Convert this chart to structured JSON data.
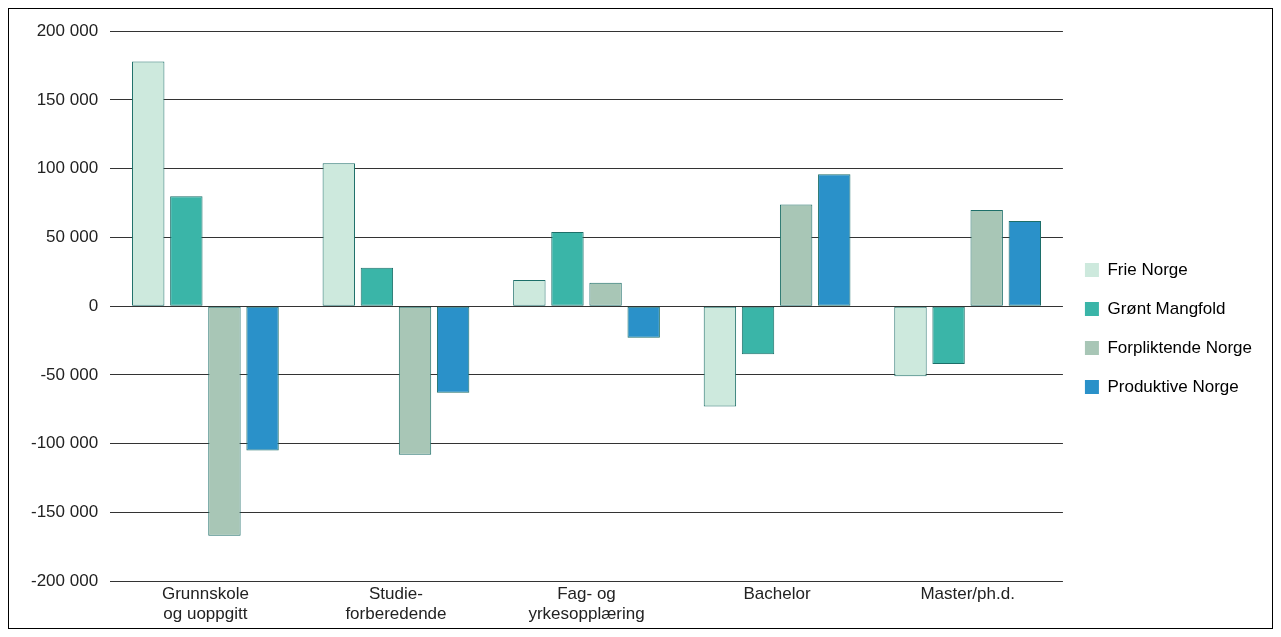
{
  "chart_data": {
    "type": "bar",
    "categories": [
      "Grunnskole\nog uoppgitt",
      "Studie-\nforberedende",
      "Fag- og\nyrkesopplæring",
      "Bachelor",
      "Master/ph.d."
    ],
    "series": [
      {
        "name": "Frie Norge",
        "color": "#cde9dd",
        "values": [
          178000,
          104000,
          19000,
          -73000,
          -51000
        ]
      },
      {
        "name": "Grønt Mangfold",
        "color": "#3ab5a8",
        "values": [
          80000,
          28000,
          54000,
          -35000,
          -42000
        ]
      },
      {
        "name": "Forpliktende Norge",
        "color": "#a8c6b6",
        "values": [
          -167000,
          -108000,
          17000,
          74000,
          70000
        ]
      },
      {
        "name": "Produktive Norge",
        "color": "#2a91c9",
        "values": [
          -105000,
          -63000,
          -23000,
          96000,
          62000
        ]
      }
    ],
    "ylim": [
      -200000,
      200000
    ],
    "yticks": [
      {
        "value": -200000,
        "label": "-200 000"
      },
      {
        "value": -150000,
        "label": "-150 000"
      },
      {
        "value": -100000,
        "label": "-100 000"
      },
      {
        "value": -50000,
        "label": "-50 000"
      },
      0,
      {
        "value": 50000,
        "label": "50 000"
      },
      {
        "value": 100000,
        "label": "100 000"
      },
      {
        "value": 150000,
        "label": "150 000"
      },
      {
        "value": 200000,
        "label": "200 000"
      }
    ],
    "grid": "y",
    "legend": "right"
  }
}
